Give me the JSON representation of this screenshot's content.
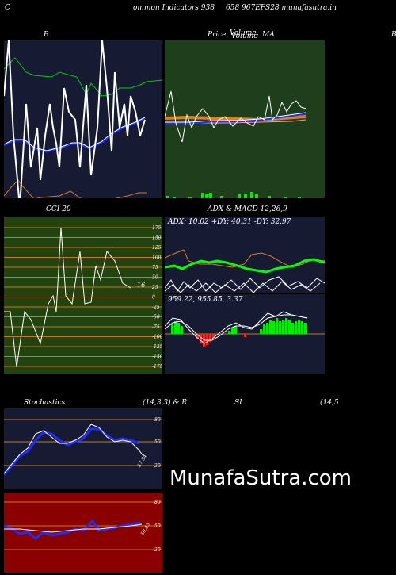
{
  "header": {
    "left": "C",
    "title": "ommon Indicators 938",
    "code": "658  967EFS28  munafasutra.in"
  },
  "panels": {
    "bollinger": {
      "label": "B"
    },
    "price": {
      "label": "Price,",
      "overlay_label": "Volume,",
      "overlay_label_2": "Volume",
      "ma_label": "MA",
      "right_cut": "B"
    },
    "cci": {
      "label": "CCI 20",
      "value_label": "16",
      "ticks": [
        "175",
        "150",
        "125",
        "100",
        "75",
        "50",
        "25",
        "0",
        "-25",
        "-50",
        "-75",
        "-100",
        "-125",
        "-150",
        "-175"
      ]
    },
    "adx": {
      "label": "ADX  & MACD 12,26,9",
      "readout": "ADX: 10.02  +DY: 40.31 -DY: 32.97"
    },
    "macd": {
      "readout": "959.22,  955.85,  3.37"
    },
    "stoch": {
      "label_left": "Stochastics",
      "label_mid": "(14,3,3) & R",
      "label_si": "SI",
      "label_right": "(14,5",
      "ticks": [
        "80",
        "50",
        "20"
      ],
      "value_label": "37.84"
    },
    "rsi": {
      "ticks": [
        "80",
        "50",
        "20"
      ],
      "value_label": "50.43"
    }
  },
  "watermark": "MunafaSutra.com",
  "colors": {
    "panel_dark": "#161b33",
    "panel_green": "#1f3e1b",
    "panel_red": "#8b0000",
    "cci_bg": "#22420f",
    "grid_orange": "#c8781a",
    "bb_green": "#00cc00",
    "blue": "#1e2cff",
    "orange": "#e0801a"
  }
}
